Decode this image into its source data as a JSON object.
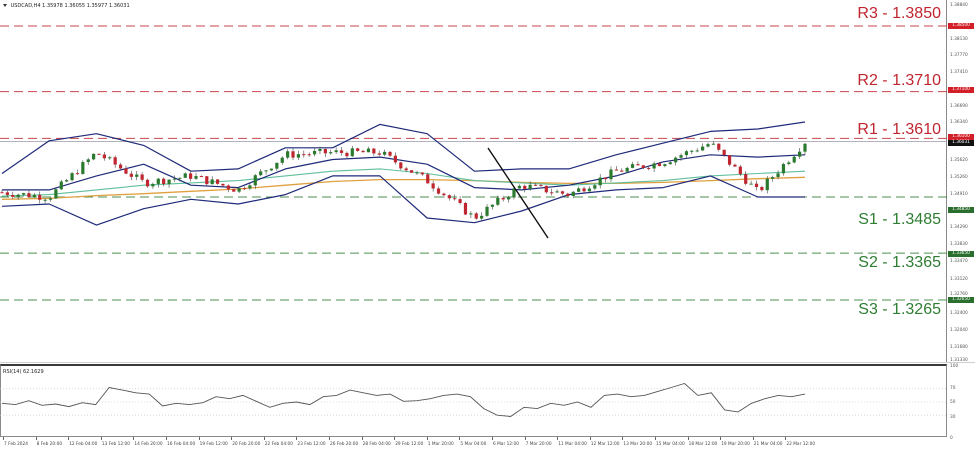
{
  "header": {
    "symbol_timeframe": "USDCAD,H4",
    "ohlc": "1.35978 1.36055 1.35977 1.36031"
  },
  "levels": [
    {
      "id": "R3",
      "label": "R3 - 1.3850",
      "price": 1.385,
      "tag": "1.38500",
      "color": "#c0262f",
      "type": "resistance"
    },
    {
      "id": "R2",
      "label": "R2 - 1.3710",
      "price": 1.371,
      "tag": "1.37100",
      "color": "#c0262f",
      "type": "resistance"
    },
    {
      "id": "R1",
      "label": "R1 - 1.3610",
      "price": 1.361,
      "tag": "1.36100",
      "color": "#c0262f",
      "type": "resistance"
    },
    {
      "id": "S1",
      "label": "S1 - 1.3485",
      "price": 1.3485,
      "tag": "1.34850",
      "color": "#2e7d32",
      "type": "support"
    },
    {
      "id": "S2",
      "label": "S2 - 1.3365",
      "price": 1.3365,
      "tag": "1.33650",
      "color": "#2e7d32",
      "type": "support"
    },
    {
      "id": "S3",
      "label": "S3 - 1.3265",
      "price": 1.3265,
      "tag": "1.32650",
      "color": "#2e7d32",
      "type": "support"
    }
  ],
  "current_price_tag": "1.36031",
  "price_axis": [
    "1.38840",
    "1.38130",
    "1.37770",
    "1.37410",
    "1.36690",
    "1.36340",
    "1.35620",
    "1.35260",
    "1.34910",
    "1.34290",
    "1.33830",
    "1.33470",
    "1.33120",
    "1.32760",
    "1.32400",
    "1.32040",
    "1.31680",
    "1.31330"
  ],
  "rsi": {
    "title": "RSI(14) 62.1629",
    "axis": [
      "100",
      "70",
      "50",
      "30",
      "0"
    ]
  },
  "time_axis": [
    "7 Feb 2024",
    "8 Feb 20:00",
    "12 Feb 04:00",
    "13 Feb 12:00",
    "14 Feb 20:00",
    "16 Feb 04:00",
    "19 Feb 12:00",
    "20 Feb 20:00",
    "22 Feb 04:00",
    "23 Feb 12:00",
    "26 Feb 20:00",
    "28 Feb 04:00",
    "29 Feb 12:00",
    "1 Mar 20:00",
    "5 Mar 04:00",
    "6 Mar 12:00",
    "7 Mar 20:00",
    "11 Mar 04:00",
    "12 Mar 12:00",
    "13 Mar 20:00",
    "15 Mar 04:00",
    "18 Mar 12:00",
    "19 Mar 20:00",
    "21 Mar 04:00",
    "22 Mar 12:00"
  ],
  "colors": {
    "bull": "#2a7a2e",
    "bear": "#c0262f",
    "bollinger": "#1f2a7a",
    "ma_fast": "#5fbf9a",
    "ma_slow": "#e0a040",
    "trendline": "#111111",
    "rsi_line": "#555555"
  },
  "chart_data": [
    {
      "type": "candlestick",
      "title": "USDCAD,H4",
      "subtitle": "1.35978 1.36055 1.35977 1.36031",
      "xlabel": "",
      "ylabel": "",
      "ylim": [
        1.3133,
        1.3884
      ],
      "x_ticks": [
        "7 Feb 2024",
        "8 Feb 20:00",
        "12 Feb 04:00",
        "13 Feb 12:00",
        "14 Feb 20:00",
        "16 Feb 04:00",
        "19 Feb 12:00",
        "20 Feb 20:00",
        "22 Feb 04:00",
        "23 Feb 12:00",
        "26 Feb 20:00",
        "28 Feb 04:00",
        "29 Feb 12:00",
        "1 Mar 20:00",
        "5 Mar 04:00",
        "6 Mar 12:00",
        "7 Mar 20:00",
        "11 Mar 04:00",
        "12 Mar 12:00",
        "13 Mar 20:00",
        "15 Mar 04:00",
        "18 Mar 12:00",
        "19 Mar 20:00",
        "21 Mar 04:00",
        "22 Mar 12:00"
      ],
      "y_ticks": [
        1.3884,
        1.3813,
        1.3777,
        1.3741,
        1.3669,
        1.3634,
        1.3562,
        1.3526,
        1.3491,
        1.3429,
        1.3383,
        1.3347,
        1.3312,
        1.3276,
        1.324,
        1.3204,
        1.3168,
        1.3133
      ],
      "horizontal_lines": [
        {
          "label": "R3 - 1.3850",
          "y": 1.385,
          "style": "dashed",
          "color": "#c0262f"
        },
        {
          "label": "R2 - 1.3710",
          "y": 1.371,
          "style": "dashed",
          "color": "#c0262f"
        },
        {
          "label": "R1 - 1.3610",
          "y": 1.361,
          "style": "dashed",
          "color": "#c0262f"
        },
        {
          "label": "S1 - 1.3485",
          "y": 1.3485,
          "style": "dashed",
          "color": "#2e7d32"
        },
        {
          "label": "S2 - 1.3365",
          "y": 1.3365,
          "style": "dashed",
          "color": "#2e7d32"
        },
        {
          "label": "S3 - 1.3265",
          "y": 1.3265,
          "style": "dashed",
          "color": "#2e7d32"
        }
      ],
      "series": [
        {
          "name": "Close (approx)",
          "x": [
            "7 Feb 2024",
            "12 Feb 04:00",
            "13 Feb 12:00",
            "16 Feb 04:00",
            "20 Feb 20:00",
            "23 Feb 12:00",
            "28 Feb 04:00",
            "1 Mar 20:00",
            "5 Mar 04:00",
            "6 Mar 12:00",
            "7 Mar 20:00",
            "11 Mar 04:00",
            "13 Mar 20:00",
            "15 Mar 04:00",
            "18 Mar 12:00",
            "19 Mar 20:00",
            "21 Mar 04:00",
            "22 Mar 12:00"
          ],
          "values": [
            1.3495,
            1.3485,
            1.358,
            1.3515,
            1.353,
            1.35,
            1.3575,
            1.358,
            1.358,
            1.352,
            1.344,
            1.351,
            1.349,
            1.354,
            1.356,
            1.36,
            1.3495,
            1.3603
          ]
        },
        {
          "name": "Bollinger Upper",
          "values": [
            1.3535,
            1.3605,
            1.362,
            1.3595,
            1.354,
            1.3545,
            1.359,
            1.359,
            1.364,
            1.362,
            1.354,
            1.3545,
            1.3545,
            1.3575,
            1.36,
            1.3625,
            1.363,
            1.3645
          ]
        },
        {
          "name": "Bollinger Middle",
          "values": [
            1.35,
            1.35,
            1.353,
            1.3555,
            1.351,
            1.3505,
            1.3545,
            1.3565,
            1.357,
            1.3555,
            1.3505,
            1.35,
            1.351,
            1.353,
            1.356,
            1.3575,
            1.357,
            1.3575
          ]
        },
        {
          "name": "Bollinger Lower",
          "values": [
            1.3465,
            1.347,
            1.3425,
            1.346,
            1.348,
            1.347,
            1.349,
            1.353,
            1.353,
            1.344,
            1.343,
            1.3455,
            1.349,
            1.35,
            1.3505,
            1.353,
            1.3485,
            1.3485
          ]
        },
        {
          "name": "MA fast (green)",
          "values": [
            1.3487,
            1.349,
            1.35,
            1.351,
            1.3515,
            1.352,
            1.353,
            1.354,
            1.3545,
            1.3535,
            1.352,
            1.3515,
            1.351,
            1.3515,
            1.352,
            1.353,
            1.3535,
            1.354
          ]
        },
        {
          "name": "MA slow (orange)",
          "values": [
            1.348,
            1.3482,
            1.3488,
            1.3492,
            1.3497,
            1.3502,
            1.351,
            1.3518,
            1.3522,
            1.3522,
            1.352,
            1.3516,
            1.3514,
            1.3514,
            1.3516,
            1.352,
            1.3524,
            1.3527
          ]
        }
      ],
      "annotations": [
        "Descending trendline from 5 Mar to 7 Mar",
        "Current price 1.36031"
      ]
    },
    {
      "type": "line",
      "title": "RSI(14) 62.1629",
      "ylim": [
        0,
        100
      ],
      "y_ticks": [
        100,
        70,
        50,
        30,
        0
      ],
      "reference_lines": [
        70,
        50,
        30
      ],
      "grid": true,
      "series": [
        {
          "name": "RSI(14)",
          "values": [
            48,
            46,
            52,
            45,
            47,
            43,
            49,
            46,
            72,
            68,
            64,
            62,
            44,
            48,
            46,
            49,
            58,
            55,
            60,
            51,
            42,
            48,
            50,
            46,
            58,
            60,
            68,
            64,
            60,
            62,
            51,
            52,
            55,
            60,
            62,
            58,
            40,
            30,
            28,
            42,
            40,
            48,
            45,
            50,
            42,
            60,
            62,
            58,
            60,
            66,
            72,
            78,
            60,
            64,
            38,
            35,
            48,
            55,
            60,
            58,
            62
          ]
        }
      ]
    }
  ]
}
